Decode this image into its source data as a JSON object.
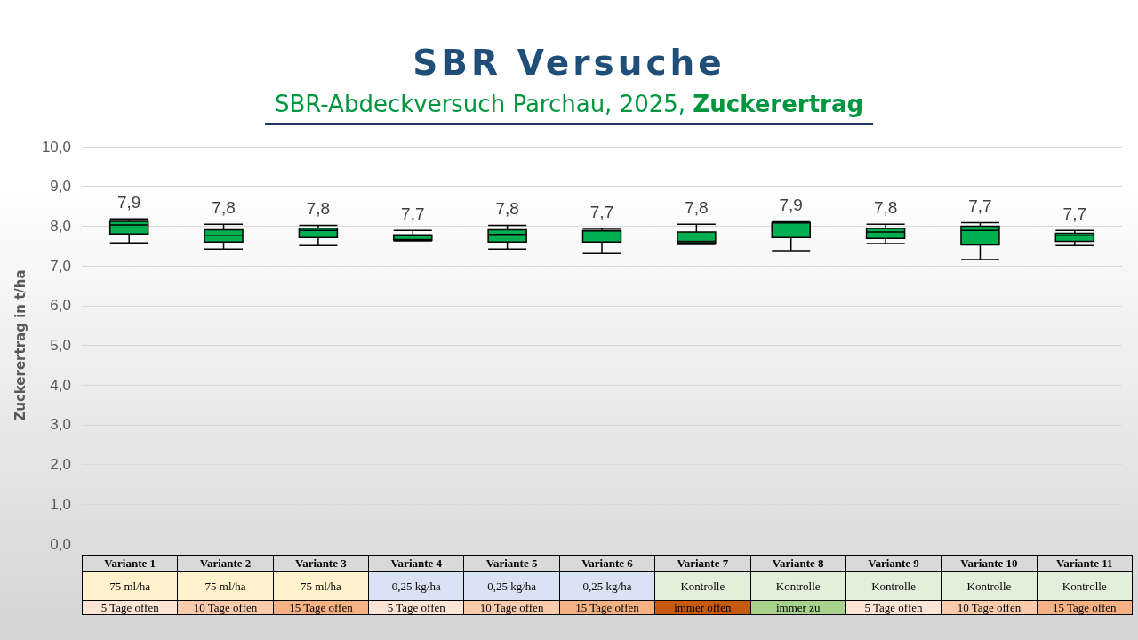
{
  "chart_data": {
    "type": "box",
    "title": "SBR Versuche",
    "subtitle": "SBR-Abdeckversuch Parchau, 2025, Zuckerertrag",
    "ylabel": "Zuckerertrag in t/ha",
    "categories": [
      "Variante 1\n75 ml/ha\n5 Tage offen",
      "Variante 2\n75 ml/ha\n10 Tage offen",
      "Variante 3\n75 ml/ha\n15 Tage offen",
      "Variante 4\n0,25 kg/ha\n5 Tage offen",
      "Variante 5\n0,25 kg/ha\n10 Tage offen",
      "Variante 6\n0,25 kg/ha\n15 Tage offen",
      "Variante 7\nKontrolle\nimmer offen",
      "Variante 8\nKontrolle\nimmer zu",
      "Variante 9\nKontrolle\n5 Tage offen",
      "Variante 10\nKontrolle\n10 Tage offen",
      "Variante 11\nKontrolle\n15 Tage offen"
    ],
    "boxes": [
      {
        "low": 7.58,
        "q1": 7.8,
        "median": 8.03,
        "q3": 8.12,
        "high": 8.18
      },
      {
        "low": 7.42,
        "q1": 7.6,
        "median": 7.76,
        "q3": 7.91,
        "high": 8.05
      },
      {
        "low": 7.51,
        "q1": 7.71,
        "median": 7.89,
        "q3": 7.95,
        "high": 8.02
      },
      {
        "low": 7.63,
        "q1": 7.64,
        "median": 7.66,
        "q3": 7.78,
        "high": 7.89
      },
      {
        "low": 7.42,
        "q1": 7.6,
        "median": 7.79,
        "q3": 7.91,
        "high": 8.02
      },
      {
        "low": 7.31,
        "q1": 7.6,
        "median": 7.88,
        "q3": 7.89,
        "high": 7.94
      },
      {
        "low": 7.54,
        "q1": 7.58,
        "median": 7.62,
        "q3": 7.85,
        "high": 8.05
      },
      {
        "low": 7.38,
        "q1": 7.71,
        "median": 8.08,
        "q3": 8.09,
        "high": 8.11
      },
      {
        "low": 7.56,
        "q1": 7.69,
        "median": 7.85,
        "q3": 7.94,
        "high": 8.05
      },
      {
        "low": 7.16,
        "q1": 7.53,
        "median": 7.89,
        "q3": 8.0,
        "high": 8.09
      },
      {
        "low": 7.51,
        "q1": 7.62,
        "median": 7.76,
        "q3": 7.82,
        "high": 7.89
      }
    ],
    "value_labels": [
      "7,9",
      "7,8",
      "7,8",
      "7,7",
      "7,8",
      "7,7",
      "7,8",
      "7,9",
      "7,8",
      "7,7",
      "7,7"
    ],
    "color": "#00b050",
    "ylim": [
      0,
      10
    ],
    "yticks": [
      {
        "value": 0,
        "label": "0,0"
      },
      {
        "value": 1,
        "label": "1,0"
      },
      {
        "value": 2,
        "label": "2,0"
      },
      {
        "value": 3,
        "label": "3,0"
      },
      {
        "value": 4,
        "label": "4,0"
      },
      {
        "value": 5,
        "label": "5,0"
      },
      {
        "value": 6,
        "label": "6,0"
      },
      {
        "value": 7,
        "label": "7,0"
      },
      {
        "value": 8,
        "label": "8,0"
      },
      {
        "value": 9,
        "label": "9,0"
      },
      {
        "value": 10,
        "label": "10,0"
      }
    ],
    "grid": "y"
  }
}
